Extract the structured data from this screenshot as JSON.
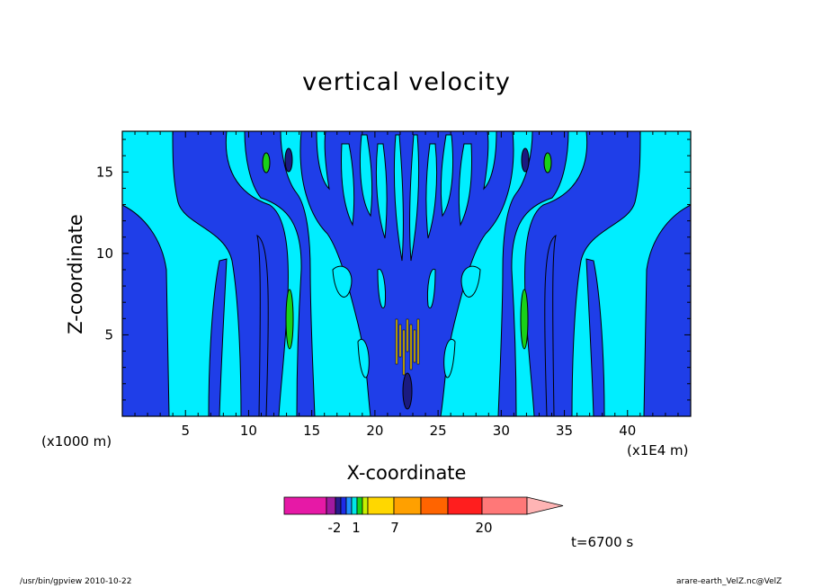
{
  "chart_data": {
    "type": "heatmap",
    "title": "vertical velocity",
    "xlabel": "X-coordinate",
    "ylabel": "Z-coordinate",
    "x_unit": "(x1E4 m)",
    "y_unit": "(x1000 m)",
    "xlim": [
      0,
      45
    ],
    "ylim": [
      0,
      17.5
    ],
    "x_ticks": [
      "5",
      "10",
      "15",
      "20",
      "25",
      "30",
      "35",
      "40"
    ],
    "y_ticks": [
      "5",
      "10",
      "15"
    ],
    "colorbar": {
      "levels": [
        "-2",
        "1",
        "7",
        "20"
      ],
      "colors": [
        "#e619a6",
        "#a01aa0",
        "#2a1a8c",
        "#1e2be6",
        "#1e90ff",
        "#00e6e6",
        "#19d219",
        "#c8f000",
        "#ffd700",
        "#ffa000",
        "#ff6400",
        "#ff1e1e",
        "#ff7878",
        "#ffb4b4"
      ]
    },
    "fill_colors": {
      "downdraft": "#1f3ee8",
      "weak": "#00eeff",
      "strong_down": "#1a1a80",
      "updraft": "#19d219",
      "strong_up": "#ffd700"
    }
  },
  "annotation_time": "t=6700 s",
  "footer_left": "/usr/bin/gpview   2010-10-22",
  "footer_right": "arare-earth_VelZ.nc@VelZ"
}
